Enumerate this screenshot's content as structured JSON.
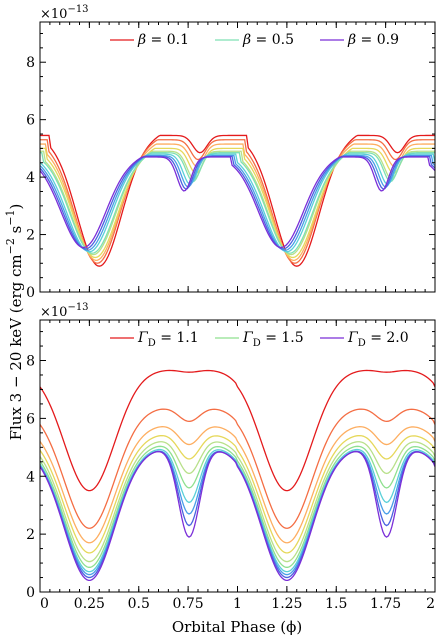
{
  "chart_data": [
    {
      "type": "line",
      "panel": "top",
      "multiplier": "×10",
      "multiplier_exp": "−13",
      "xlim": [
        0,
        2
      ],
      "ylim": [
        0,
        9.4
      ],
      "y_ticks": [
        "0",
        "2",
        "4",
        "6",
        "8"
      ],
      "y_tick_values": [
        0,
        2,
        4,
        6,
        8
      ],
      "x_ticks_minor_only": true,
      "legend_placement": "top",
      "legend": [
        {
          "symbol": "β",
          "label": " = 0.1",
          "color": "#e41a1c"
        },
        {
          "symbol": "β",
          "label": " = 0.5",
          "color": "#7fe0b4"
        },
        {
          "symbol": "β",
          "label": " = 0.9",
          "color": "#7b2fd8"
        }
      ],
      "series_shape": {
        "min_phase": 0.25,
        "peaks": [
          0.6,
          0.9
        ],
        "period": 1
      },
      "series": [
        {
          "color": "#e41a1c",
          "min": 0.9,
          "peak": 5.45,
          "shift": 0.05
        },
        {
          "color": "#f46d43",
          "min": 1.0,
          "peak": 5.3,
          "shift": 0.04
        },
        {
          "color": "#fdae61",
          "min": 1.1,
          "peak": 5.15,
          "shift": 0.035
        },
        {
          "color": "#e6d85a",
          "min": 1.2,
          "peak": 5.0,
          "shift": 0.03
        },
        {
          "color": "#b8e08a",
          "min": 1.3,
          "peak": 4.9,
          "shift": 0.02
        },
        {
          "color": "#7fe0b4",
          "min": 1.35,
          "peak": 4.85,
          "shift": 0.015
        },
        {
          "color": "#5ad0d8",
          "min": 1.4,
          "peak": 4.8,
          "shift": 0.0
        },
        {
          "color": "#4a9ee8",
          "min": 1.45,
          "peak": 4.75,
          "shift": -0.01
        },
        {
          "color": "#4a63e0",
          "min": 1.5,
          "peak": 4.72,
          "shift": -0.02
        },
        {
          "color": "#7b2fd8",
          "min": 1.55,
          "peak": 4.7,
          "shift": -0.03
        }
      ]
    },
    {
      "type": "line",
      "panel": "bottom",
      "multiplier": "×10",
      "multiplier_exp": "−13",
      "xlim": [
        0,
        2
      ],
      "ylim": [
        0,
        9.4
      ],
      "y_ticks": [
        "0",
        "2",
        "4",
        "6",
        "8"
      ],
      "y_tick_values": [
        0,
        2,
        4,
        6,
        8
      ],
      "x_ticks": [
        "0",
        "0.25",
        "0.5",
        "0.75",
        "1",
        "1.25",
        "1.5",
        "1.75",
        "2"
      ],
      "x_tick_values": [
        0,
        0.25,
        0.5,
        0.75,
        1,
        1.25,
        1.5,
        1.75,
        2
      ],
      "xlabel": "Orbital Phase (ϕ)",
      "legend_placement": "top",
      "legend": [
        {
          "symbol": "Γ",
          "sub": "D",
          "label": " = 1.1",
          "color": "#e41a1c"
        },
        {
          "symbol": "Γ",
          "sub": "D",
          "label": " = 1.5",
          "color": "#8fe08f"
        },
        {
          "symbol": "Γ",
          "sub": "D",
          "label": " = 2.0",
          "color": "#7b2fd8"
        }
      ],
      "series": [
        {
          "color": "#e41a1c",
          "min": 3.5,
          "peak": 7.7,
          "mid": 7.6
        },
        {
          "color": "#f46d43",
          "min": 2.2,
          "peak": 6.4,
          "mid": 5.9
        },
        {
          "color": "#fdae61",
          "min": 1.7,
          "peak": 5.8,
          "mid": 5.1
        },
        {
          "color": "#e6d85a",
          "min": 1.35,
          "peak": 5.5,
          "mid": 4.6
        },
        {
          "color": "#b8e08a",
          "min": 1.05,
          "peak": 5.3,
          "mid": 4.1
        },
        {
          "color": "#8fe08f",
          "min": 0.85,
          "peak": 5.15,
          "mid": 3.6
        },
        {
          "color": "#5ad0d8",
          "min": 0.7,
          "peak": 5.05,
          "mid": 3.1
        },
        {
          "color": "#4a9ee8",
          "min": 0.6,
          "peak": 5.0,
          "mid": 2.7
        },
        {
          "color": "#4a63e0",
          "min": 0.5,
          "peak": 5.0,
          "mid": 2.3
        },
        {
          "color": "#7b2fd8",
          "min": 0.4,
          "peak": 5.0,
          "mid": 1.9
        }
      ]
    }
  ],
  "shared_ylabel": {
    "prefix": "Flux 3 − 20 keV (erg cm",
    "exp1": "−2",
    "mid": " s",
    "exp2": "−1",
    "suffix": ")"
  }
}
